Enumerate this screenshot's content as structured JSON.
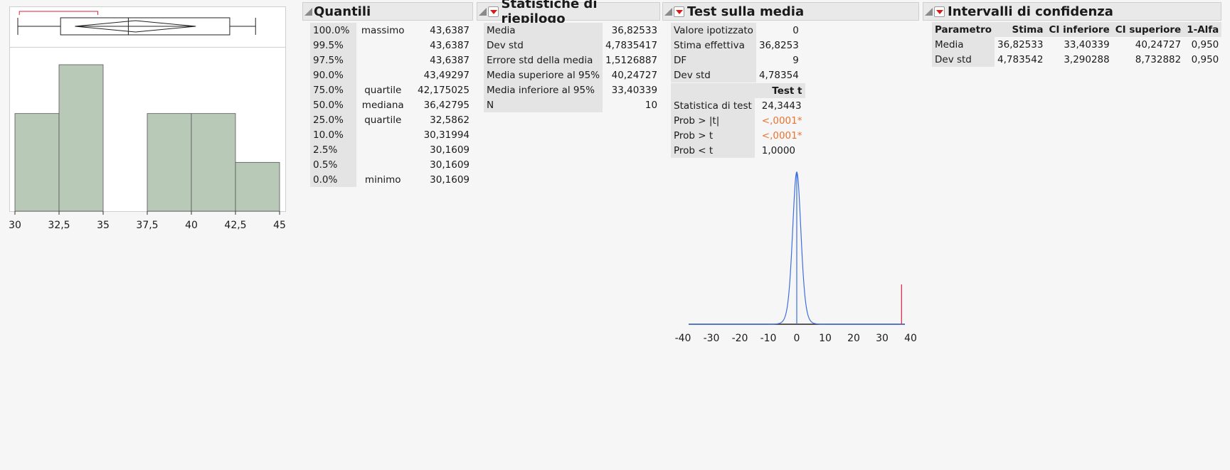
{
  "histogram": {
    "x_ticks": [
      "30",
      "32,5",
      "35",
      "37,5",
      "40",
      "42,5",
      "45"
    ],
    "bins": [
      {
        "from": 30,
        "to": 32.5,
        "count": 2
      },
      {
        "from": 32.5,
        "to": 35,
        "count": 3
      },
      {
        "from": 35,
        "to": 37.5,
        "count": 0
      },
      {
        "from": 37.5,
        "to": 40,
        "count": 2
      },
      {
        "from": 40,
        "to": 42.5,
        "count": 2
      },
      {
        "from": 42.5,
        "to": 45,
        "count": 1
      }
    ],
    "bar_color": "#b9c9b8",
    "box": {
      "min": 30.1609,
      "q1": 32.5862,
      "median": 36.42795,
      "q3": 42.175025,
      "max": 43.6387,
      "mean": 36.82533,
      "ci_low": 33.40339,
      "ci_high": 40.24727
    }
  },
  "quantili": {
    "title": "Quantili",
    "rows": [
      {
        "pct": "100.0%",
        "name": "massimo",
        "value": "43,6387"
      },
      {
        "pct": "99.5%",
        "name": "",
        "value": "43,6387"
      },
      {
        "pct": "97.5%",
        "name": "",
        "value": "43,6387"
      },
      {
        "pct": "90.0%",
        "name": "",
        "value": "43,49297"
      },
      {
        "pct": "75.0%",
        "name": "quartile",
        "value": "42,175025"
      },
      {
        "pct": "50.0%",
        "name": "mediana",
        "value": "36,42795"
      },
      {
        "pct": "25.0%",
        "name": "quartile",
        "value": "32,5862"
      },
      {
        "pct": "10.0%",
        "name": "",
        "value": "30,31994"
      },
      {
        "pct": "2.5%",
        "name": "",
        "value": "30,1609"
      },
      {
        "pct": "0.5%",
        "name": "",
        "value": "30,1609"
      },
      {
        "pct": "0.0%",
        "name": "minimo",
        "value": "30,1609"
      }
    ]
  },
  "statistiche": {
    "title": "Statistiche di riepilogo",
    "rows": [
      {
        "label": "Media",
        "value": "36,82533"
      },
      {
        "label": "Dev std",
        "value": "4,7835417"
      },
      {
        "label": "Errore std della media",
        "value": "1,5126887"
      },
      {
        "label": "Media superiore al 95%",
        "value": "40,24727"
      },
      {
        "label": "Media inferiore al 95%",
        "value": "33,40339"
      },
      {
        "label": "N",
        "value": "10"
      }
    ]
  },
  "test_media": {
    "title": "Test sulla media",
    "rows": [
      {
        "label": "Valore ipotizzato",
        "value": "0"
      },
      {
        "label": "Stima effettiva",
        "value": "36,8253"
      },
      {
        "label": "DF",
        "value": "9"
      },
      {
        "label": "Dev std",
        "value": "4,78354"
      }
    ],
    "test_header": "Test t",
    "test_rows": [
      {
        "label": "Statistica di test",
        "value": "24,3443",
        "highlight": false
      },
      {
        "label": "Prob > |t|",
        "value": "<,0001*",
        "highlight": true
      },
      {
        "label": "Prob > t",
        "value": "<,0001*",
        "highlight": true
      },
      {
        "label": "Prob < t",
        "value": "1,0000",
        "highlight": false
      }
    ],
    "plot": {
      "x_ticks": [
        "-40",
        "-30",
        "-20",
        "-10",
        "0",
        "10",
        "20",
        "30",
        "40"
      ],
      "xlim": [
        -40,
        40
      ],
      "curve_color": "#3b6fe0",
      "marker_color": "#e0203a",
      "estimate": 36.8253,
      "scale_se": 1.5126887
    }
  },
  "intervalli": {
    "title": "Intervalli di confidenza",
    "headers": [
      "Parametro",
      "Stima",
      "CI inferiore",
      "CI superiore",
      "1-Alfa"
    ],
    "rows": [
      [
        "Media",
        "36,82533",
        "33,40339",
        "40,24727",
        "0,950"
      ],
      [
        "Dev std",
        "4,783542",
        "3,290288",
        "8,732882",
        "0,950"
      ]
    ]
  }
}
